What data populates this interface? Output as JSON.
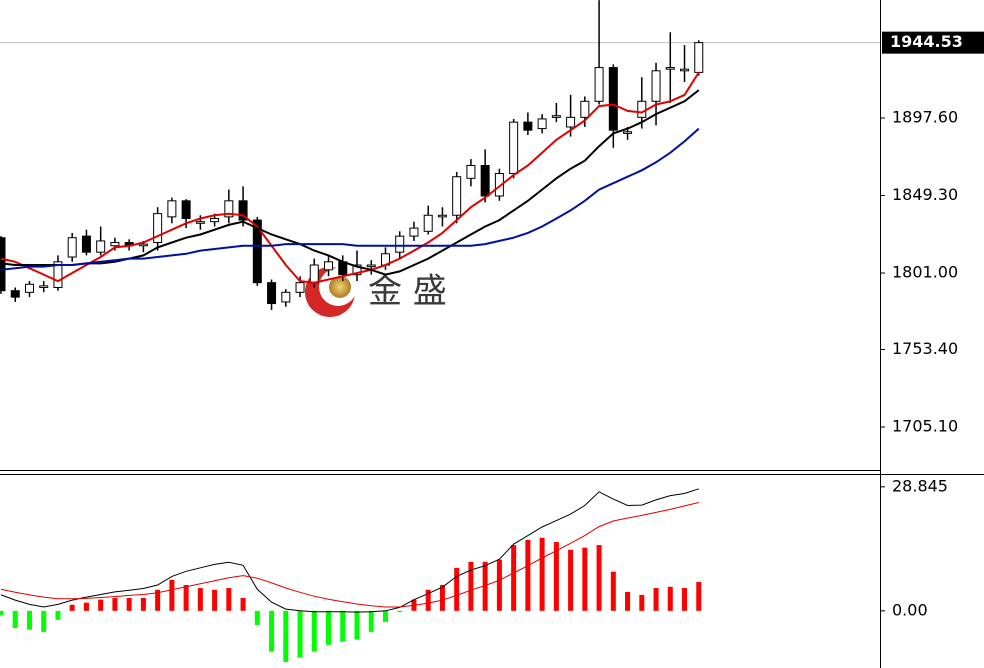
{
  "chart_data": [
    {
      "type": "candlestick",
      "open": [
        1823,
        1790,
        1789,
        1792,
        1792,
        1811,
        1824,
        1814,
        1818,
        1820,
        1818,
        1820,
        1836,
        1846,
        1832,
        1833,
        1836,
        1846,
        1834,
        1795,
        1783,
        1789,
        1795,
        1803,
        1808,
        1800,
        1805,
        1806,
        1814,
        1824,
        1827,
        1836,
        1837,
        1860,
        1868,
        1849,
        1863,
        1895,
        1891,
        1898,
        1892,
        1898,
        1908,
        1929,
        1888,
        1898,
        1908,
        1928,
        1927,
        1926
      ],
      "high": [
        1824,
        1792,
        1796,
        1796,
        1812,
        1826,
        1828,
        1830,
        1823,
        1822,
        1821,
        1842,
        1848,
        1847,
        1837,
        1838,
        1853,
        1855,
        1836,
        1797,
        1791,
        1799,
        1810,
        1812,
        1812,
        1815,
        1809,
        1817,
        1827,
        1833,
        1843,
        1842,
        1864,
        1872,
        1878,
        1866,
        1897,
        1901,
        1900,
        1907,
        1912,
        1911,
        1971,
        1931,
        1892,
        1923,
        1932,
        1951,
        1943,
        1946
      ],
      "low": [
        1788,
        1783,
        1786,
        1789,
        1790,
        1808,
        1812,
        1812,
        1815,
        1815,
        1814,
        1815,
        1832,
        1829,
        1828,
        1830,
        1832,
        1830,
        1793,
        1778,
        1780,
        1786,
        1792,
        1799,
        1796,
        1796,
        1800,
        1803,
        1810,
        1821,
        1825,
        1830,
        1832,
        1855,
        1845,
        1846,
        1860,
        1887,
        1888,
        1895,
        1886,
        1892,
        1906,
        1879,
        1884,
        1891,
        1893,
        1907,
        1920,
        1924
      ],
      "close": [
        1790,
        1786,
        1794,
        1793,
        1808,
        1823,
        1814,
        1821,
        1820,
        1818,
        1819,
        1838,
        1846,
        1835,
        1833,
        1835,
        1846,
        1834,
        1795,
        1782,
        1789,
        1795,
        1806,
        1808,
        1800,
        1806,
        1806,
        1813,
        1824,
        1829,
        1837,
        1837,
        1861,
        1868,
        1849,
        1863,
        1895,
        1890,
        1897,
        1899,
        1898,
        1908,
        1929,
        1890,
        1889,
        1908,
        1927,
        1929,
        1928,
        1944.53
      ],
      "up_color": "#ffffff",
      "down_color": "#000000",
      "series": [
        {
          "color": "#e00000",
          "values": [
            1810,
            1808,
            1804,
            1800,
            1796,
            1801,
            1806,
            1811,
            1817,
            1818,
            1820,
            1824,
            1828,
            1832,
            1835,
            1837,
            1838,
            1837,
            1830,
            1818,
            1806,
            1796,
            1795,
            1797,
            1799,
            1801,
            1803,
            1806,
            1810,
            1815,
            1820,
            1826,
            1834,
            1842,
            1848,
            1855,
            1862,
            1868,
            1876,
            1884,
            1890,
            1896,
            1905,
            1906,
            1902,
            1901,
            1906,
            1908,
            1912,
            1926
          ]
        },
        {
          "color": "#000000",
          "values": [
            1807,
            1806,
            1806,
            1806,
            1806,
            1806,
            1807,
            1807,
            1808,
            1810,
            1812,
            1817,
            1820,
            1823,
            1825,
            1828,
            1831,
            1833,
            1829,
            1825,
            1822,
            1819,
            1815,
            1812,
            1808,
            1805,
            1803,
            1800,
            1802,
            1806,
            1810,
            1815,
            1820,
            1825,
            1830,
            1834,
            1840,
            1846,
            1853,
            1860,
            1866,
            1871,
            1880,
            1888,
            1891,
            1895,
            1900,
            1904,
            1908,
            1915
          ]
        },
        {
          "color": "#0010a0",
          "values": [
            1803,
            1804,
            1805,
            1805,
            1806,
            1806,
            1807,
            1808,
            1809,
            1810,
            1810,
            1811,
            1812,
            1813,
            1815,
            1816,
            1817,
            1818,
            1818,
            1818,
            1819,
            1819,
            1819,
            1819,
            1819,
            1818,
            1818,
            1818,
            1818,
            1818,
            1818,
            1818,
            1818,
            1818,
            1819,
            1821,
            1823,
            1826,
            1830,
            1835,
            1840,
            1846,
            1853,
            1857,
            1861,
            1865,
            1870,
            1876,
            1883,
            1891
          ]
        }
      ],
      "current_price": {
        "value": 1944.53,
        "label": "1944.53"
      },
      "ylim": [
        1678.3,
        1971.1
      ],
      "yticks": [
        {
          "value": 1897.6,
          "label": "1897.60"
        },
        {
          "value": 1849.3,
          "label": "1849.30"
        },
        {
          "value": 1801,
          "label": "1801.00"
        },
        {
          "value": 1753.4,
          "label": "1753.40"
        },
        {
          "value": 1705.1,
          "label": "1705.10"
        }
      ],
      "watermark": "金 盛"
    },
    {
      "type": "macd",
      "histogram": {
        "values": [
          -1,
          -4,
          -4.4,
          -4.9,
          -2.1,
          1.4,
          1.9,
          2.6,
          3,
          3,
          3,
          4.9,
          7.2,
          6,
          5.3,
          4.9,
          5.3,
          3,
          -3.3,
          -9.5,
          -11.9,
          -10.9,
          -9.5,
          -7.9,
          -7.2,
          -6.7,
          -4.9,
          -2.6,
          -0.3,
          2.6,
          4.9,
          6,
          10,
          11.4,
          11.4,
          11.9,
          15.3,
          16.5,
          17,
          16,
          14.2,
          14.7,
          15.3,
          9.1,
          4.4,
          3.7,
          5.3,
          5.6,
          5.3,
          6.7
        ],
        "up_color": "#ff0000",
        "down_color": "#00ff00"
      },
      "series": [
        {
          "color": "#000000",
          "values": [
            3.7,
            2.5,
            1.5,
            0.9,
            1.5,
            2.5,
            3.2,
            3.8,
            4.4,
            4.8,
            5.2,
            6,
            8,
            9.2,
            10,
            10.8,
            11.3,
            10.6,
            5,
            2,
            0.4,
            0,
            -0.2,
            -0.2,
            -0.2,
            -0.3,
            -0.2,
            0,
            0.8,
            2.6,
            4,
            5.5,
            8,
            9.5,
            10.5,
            12,
            15.5,
            17.5,
            19.5,
            21,
            22.5,
            24.5,
            27.7,
            26,
            24.5,
            24.6,
            25.8,
            26.8,
            27.3,
            28.4
          ]
        },
        {
          "color": "#e00000",
          "values": [
            5,
            4.3,
            3.7,
            3.2,
            2.8,
            2.8,
            2.9,
            3.1,
            3.3,
            3.6,
            3.8,
            4.2,
            4.9,
            5.6,
            6.3,
            7,
            7.7,
            8.2,
            7.6,
            6.5,
            5.3,
            4.3,
            3.4,
            2.7,
            2.1,
            1.6,
            1.2,
            0.9,
            0.9,
            1.3,
            1.8,
            2.5,
            3.6,
            4.8,
            5.9,
            7.1,
            8.8,
            10.5,
            12.3,
            14,
            15.7,
            17.5,
            19.6,
            20.9,
            21.6,
            22.2,
            22.9,
            23.6,
            24.4,
            25.2
          ]
        }
      ],
      "ylim": [
        -13.3,
        31.6
      ],
      "yticks": [
        28.845,
        {
          "value": 0,
          "label": "0.00"
        }
      ]
    }
  ]
}
